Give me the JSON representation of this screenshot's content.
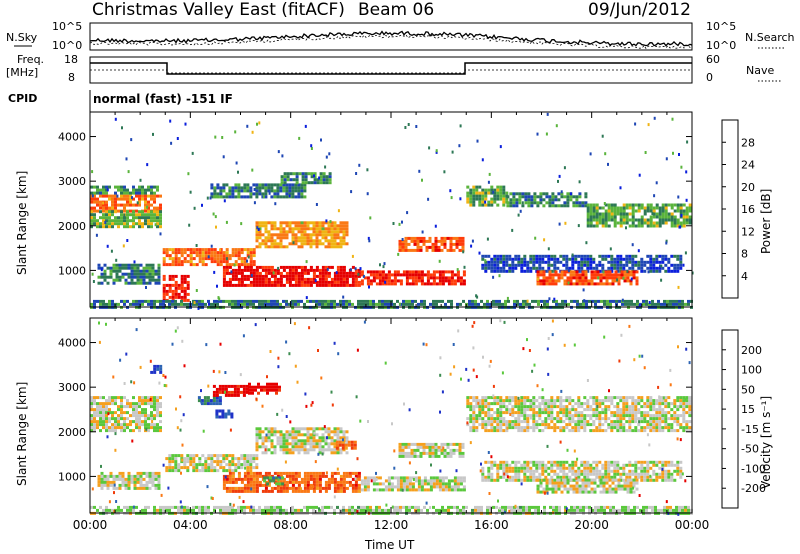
{
  "header": {
    "title": "Christmas Valley East (fitACF)",
    "beam": "Beam 06",
    "date": "09/Jun/2012"
  },
  "top_panels": {
    "nsky": {
      "label": "N.Sky",
      "ticks": [
        "10^5",
        "10^0"
      ]
    },
    "nsearch": {
      "label": "N.Search",
      "ticks": [
        "10^5",
        "10^0"
      ]
    },
    "freq": {
      "label_line1": "Freq.",
      "label_line2": "[MHz]",
      "ticks": [
        "18",
        "8"
      ]
    },
    "nave": {
      "label": "Nave",
      "ticks": [
        "60",
        "0"
      ]
    },
    "cpid": {
      "label": "CPID",
      "value": "normal (fast) -151 IF"
    }
  },
  "chart_data": [
    {
      "type": "heatmap",
      "title": "",
      "xlabel": "",
      "ylabel": "Slant Range [km]",
      "xlim": [
        0,
        24
      ],
      "ylim": [
        180,
        4550
      ],
      "x_ticklabels": [],
      "y_ticks": [
        1000,
        2000,
        3000,
        4000
      ],
      "y_ticklabels": [
        "1000",
        "2000",
        "3000",
        "4000"
      ],
      "colorbar": {
        "label": "Power [dB]",
        "ticks": [
          "4",
          "8",
          "12",
          "16",
          "20",
          "24",
          "28"
        ],
        "colors": [
          "#0a1edc",
          "#1e46b4",
          "#2d7855",
          "#5ab43c",
          "#f0b414",
          "#fa7814",
          "#ff3c0a",
          "#e60000"
        ],
        "range": [
          0,
          30
        ]
      },
      "bands": [
        {
          "x": [
            0,
            2.8
          ],
          "y": [
            2350,
            2700
          ],
          "level": 0.72
        },
        {
          "x": [
            0,
            2.8
          ],
          "y": [
            2000,
            2350
          ],
          "level": 0.45
        },
        {
          "x": [
            0,
            2.8
          ],
          "y": [
            2700,
            2900
          ],
          "level": 0.35
        },
        {
          "x": [
            0.3,
            2.7
          ],
          "y": [
            700,
            1150
          ],
          "level": 0.3
        },
        {
          "x": [
            2.9,
            3.9
          ],
          "y": [
            350,
            900
          ],
          "level": 0.9
        },
        {
          "x": [
            2.9,
            6.6
          ],
          "y": [
            1150,
            1500
          ],
          "level": 0.72
        },
        {
          "x": [
            6.6,
            10.3
          ],
          "y": [
            1500,
            2100
          ],
          "level": 0.62
        },
        {
          "x": [
            5.3,
            10.8
          ],
          "y": [
            650,
            1100
          ],
          "level": 0.95
        },
        {
          "x": [
            10.8,
            14.9
          ],
          "y": [
            700,
            1000
          ],
          "level": 0.88
        },
        {
          "x": [
            4.8,
            8.6
          ],
          "y": [
            2650,
            2950
          ],
          "level": 0.3
        },
        {
          "x": [
            7.6,
            9.6
          ],
          "y": [
            2950,
            3200
          ],
          "level": 0.35
        },
        {
          "x": [
            12.3,
            14.9
          ],
          "y": [
            1450,
            1750
          ],
          "level": 0.78
        },
        {
          "x": [
            15.0,
            16.6
          ],
          "y": [
            2450,
            2900
          ],
          "level": 0.42
        },
        {
          "x": [
            16.6,
            19.8
          ],
          "y": [
            2450,
            2750
          ],
          "level": 0.32
        },
        {
          "x": [
            19.8,
            23.9
          ],
          "y": [
            2000,
            2500
          ],
          "level": 0.4
        },
        {
          "x": [
            15.6,
            23.5
          ],
          "y": [
            1000,
            1350
          ],
          "level": 0.18
        },
        {
          "x": [
            17.8,
            21.8
          ],
          "y": [
            700,
            1000
          ],
          "level": 0.78
        },
        {
          "x": [
            0,
            24
          ],
          "y": [
            180,
            340
          ],
          "level": 0.3
        }
      ]
    },
    {
      "type": "heatmap",
      "title": "",
      "xlabel": "Time UT",
      "ylabel": "Slant Range [km]",
      "xlim": [
        0,
        24
      ],
      "ylim": [
        180,
        4550
      ],
      "x_ticks": [
        0,
        4,
        8,
        12,
        16,
        20,
        24
      ],
      "x_ticklabels": [
        "00:00",
        "04:00",
        "08:00",
        "12:00",
        "16:00",
        "20:00",
        "00:00"
      ],
      "y_ticks": [
        1000,
        2000,
        3000,
        4000
      ],
      "y_ticklabels": [
        "1000",
        "2000",
        "3000",
        "4000"
      ],
      "colorbar": {
        "label": "Velocity [m s⁻¹]",
        "ticks": [
          "200",
          "100",
          "50",
          "15",
          "-15",
          "-50",
          "-100",
          "-200"
        ],
        "colors": [
          "#1e32c8",
          "#2d64b4",
          "#3c8c50",
          "#5ac83c",
          "#c8c8c8",
          "#f5a01e",
          "#fa7814",
          "#f03c0a",
          "#e60000"
        ],
        "range": [
          -250,
          250
        ]
      },
      "bands": [
        {
          "x": [
            0,
            2.8
          ],
          "y": [
            2000,
            2800
          ],
          "level": 0.0
        },
        {
          "x": [
            0.3,
            2.7
          ],
          "y": [
            700,
            1100
          ],
          "level": 0.0
        },
        {
          "x": [
            3.0,
            6.6
          ],
          "y": [
            1150,
            1500
          ],
          "level": 0.0
        },
        {
          "x": [
            6.6,
            10.3
          ],
          "y": [
            1500,
            2100
          ],
          "level": 0.0
        },
        {
          "x": [
            5.3,
            10.8
          ],
          "y": [
            650,
            1100
          ],
          "level": -0.55
        },
        {
          "x": [
            10.8,
            14.9
          ],
          "y": [
            700,
            1000
          ],
          "level": 0.0
        },
        {
          "x": [
            12.3,
            14.9
          ],
          "y": [
            1450,
            1750
          ],
          "level": 0.0
        },
        {
          "x": [
            15.0,
            23.9
          ],
          "y": [
            2000,
            2800
          ],
          "level": 0.0
        },
        {
          "x": [
            15.6,
            23.5
          ],
          "y": [
            900,
            1350
          ],
          "level": 0.0
        },
        {
          "x": [
            17.8,
            21.8
          ],
          "y": [
            650,
            950
          ],
          "level": 0.0
        },
        {
          "x": [
            9.8,
            10.6
          ],
          "y": [
            1650,
            1800
          ],
          "level": -0.55
        },
        {
          "x": [
            4.3,
            5.2
          ],
          "y": [
            2600,
            2800
          ],
          "level": 0.6
        },
        {
          "x": [
            5.0,
            5.6
          ],
          "y": [
            2300,
            2500
          ],
          "level": 0.9
        },
        {
          "x": [
            4.9,
            6.3
          ],
          "y": [
            2800,
            3050
          ],
          "level": -0.95
        },
        {
          "x": [
            6.3,
            7.6
          ],
          "y": [
            2850,
            3100
          ],
          "level": -0.95
        },
        {
          "x": [
            6.9,
            7.7
          ],
          "y": [
            800,
            1000
          ],
          "level": 0.4
        },
        {
          "x": [
            2.4,
            2.8
          ],
          "y": [
            3300,
            3500
          ],
          "level": 0.9
        },
        {
          "x": [
            0,
            24
          ],
          "y": [
            180,
            340
          ],
          "level": 0.1
        }
      ]
    }
  ]
}
